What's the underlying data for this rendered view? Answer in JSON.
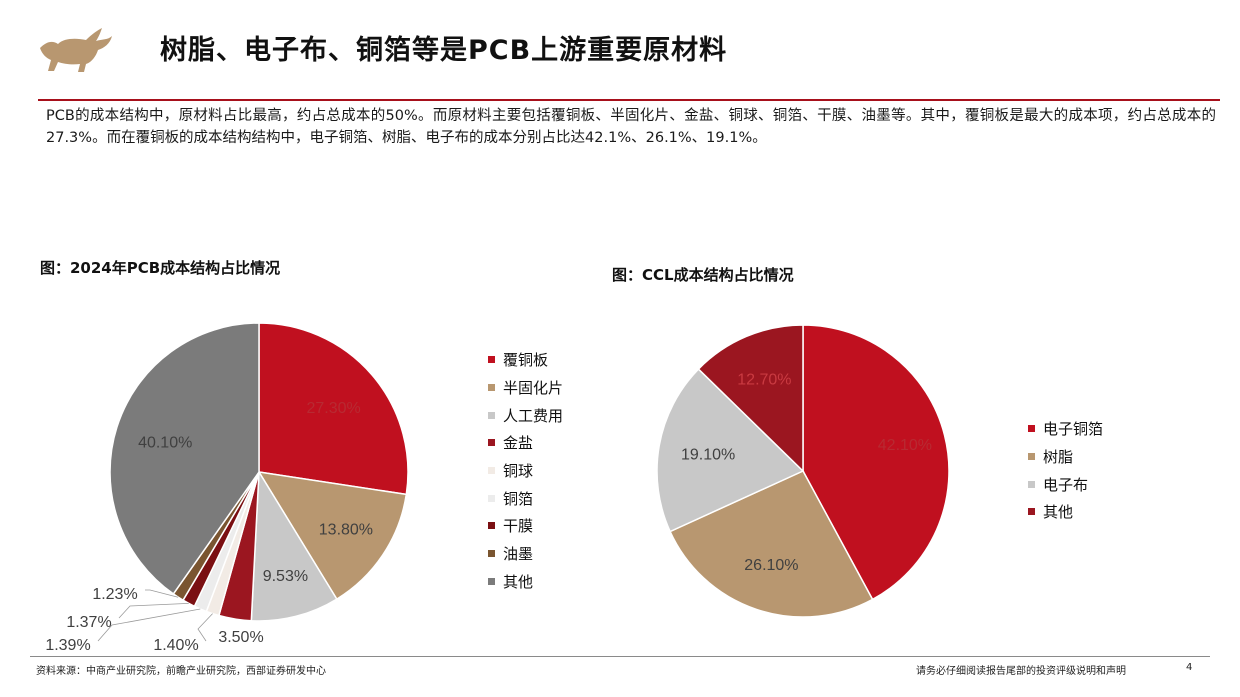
{
  "header": {
    "title": "树脂、电子布、铜箔等是PCB上游重要原材料",
    "intro": "PCB的成本结构中，原材料占比最高，约占总成本的50%。而原材料主要包括覆铜板、半固化片、金盐、铜球、铜箔、干膜、油墨等。其中，覆铜板是最大的成本项，约占总成本的27.3%。而在覆铜板的成本结构结构中，电子铜箔、树脂、电子布的成本分别占比达42.1%、26.1%、19.1%。"
  },
  "colors": {
    "accent": "#a7101b",
    "red": "#c0101f",
    "tan": "#b89770",
    "grey": "#c8c8c8",
    "maroon": "#9b1620",
    "peach": "#f2ebe5",
    "lightgrey": "#ececec",
    "darkred": "#7a0f12",
    "brown": "#7a5530",
    "darkgrey": "#7b7b7b"
  },
  "chart_data": [
    {
      "type": "pie",
      "title": "图：2024年PCB成本结构占比情况",
      "start_angle_deg": 0,
      "direction": "clockwise",
      "categories": [
        "覆铜板",
        "半固化片",
        "人工费用",
        "金盐",
        "铜球",
        "铜箔",
        "干膜",
        "油墨",
        "其他"
      ],
      "values": [
        27.3,
        13.8,
        9.53,
        3.5,
        1.4,
        1.39,
        1.37,
        1.23,
        40.1
      ],
      "labels": [
        "27.30%",
        "13.80%",
        "9.53%",
        "3.50%",
        "1.40%",
        "1.39%",
        "1.37%",
        "1.23%",
        "40.10%"
      ],
      "colors": [
        "#c0101f",
        "#b89770",
        "#c8c8c8",
        "#9b1620",
        "#f2ebe5",
        "#ececec",
        "#7a0f12",
        "#7a5530",
        "#7b7b7b"
      ],
      "legend": "right"
    },
    {
      "type": "pie",
      "title": "图：CCL成本结构占比情况",
      "start_angle_deg": 0,
      "direction": "clockwise",
      "categories": [
        "电子铜箔",
        "树脂",
        "电子布",
        "其他"
      ],
      "values": [
        42.1,
        26.1,
        19.1,
        12.7
      ],
      "labels": [
        "42.10%",
        "26.10%",
        "19.10%",
        "12.70%"
      ],
      "colors": [
        "#c0101f",
        "#b89770",
        "#c8c8c8",
        "#9b1620"
      ],
      "legend": "right"
    }
  ],
  "footer": {
    "source": "资料来源：中商产业研究院，前瞻产业研究院，西部证券研发中心",
    "disclaimer": "请务必仔细阅读报告尾部的投资评级说明和声明",
    "page": "4"
  }
}
